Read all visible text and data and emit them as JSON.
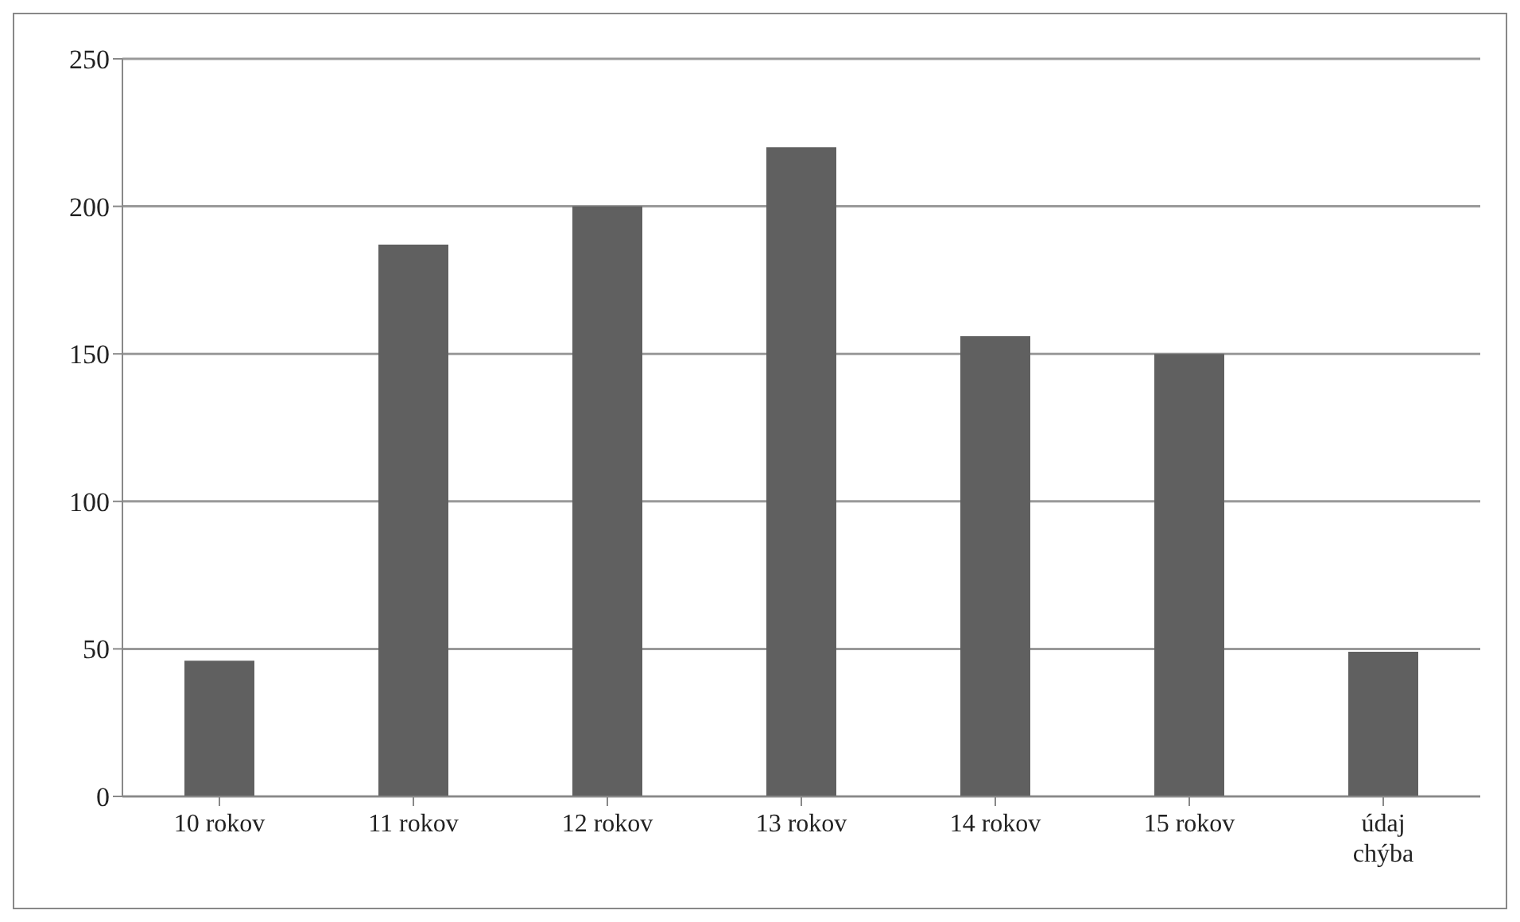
{
  "chart_data": {
    "type": "bar",
    "categories": [
      "10 rokov",
      "11 rokov",
      "12 rokov",
      "13 rokov",
      "14 rokov",
      "15 rokov",
      "údaj chýba"
    ],
    "values": [
      46,
      187,
      200,
      220,
      156,
      150,
      49
    ],
    "color": "#606060",
    "ylim": [
      0,
      250
    ],
    "yticks": [
      0,
      50,
      100,
      150,
      200,
      250
    ],
    "grid": "y",
    "legend": false
  }
}
